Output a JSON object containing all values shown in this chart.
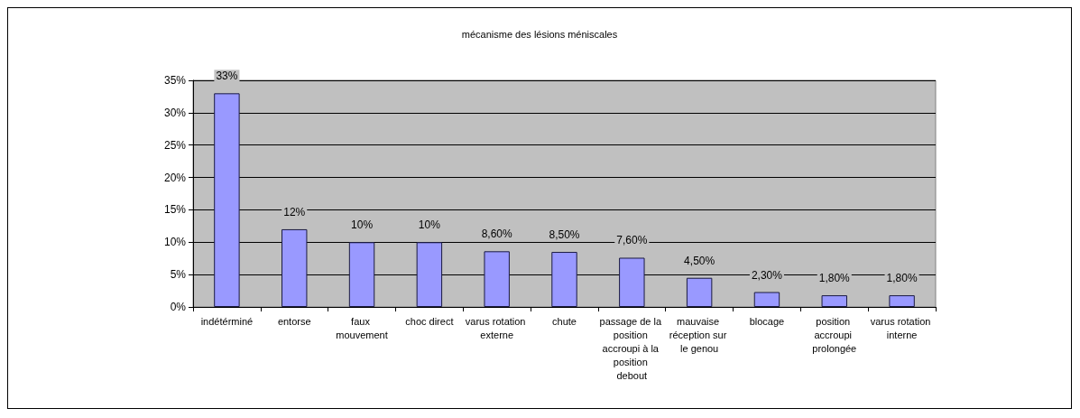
{
  "chart_data": {
    "type": "bar",
    "title": "mécanisme des lésions méniscales",
    "categories": [
      "indétérminé",
      "entorse",
      "faux mouvement",
      "choc direct",
      "varus rotation externe",
      "chute",
      "passage de la position accroupi à la position debout",
      "mauvaise réception sur le genou",
      "blocage",
      "position accroupi prolongée",
      "varus rotation interne"
    ],
    "values": [
      33,
      12,
      10,
      10,
      8.6,
      8.5,
      7.6,
      4.5,
      2.3,
      1.8,
      1.8
    ],
    "value_labels": [
      "33%",
      "12%",
      "10%",
      "10%",
      "8,60%",
      "8,50%",
      "7,60%",
      "4,50%",
      "2,30%",
      "1,80%",
      "1,80%"
    ],
    "color": "#9999ff",
    "ylim": [
      0,
      35
    ],
    "yticks": [
      {
        "value": 0,
        "label": "0%"
      },
      {
        "value": 5,
        "label": "5%"
      },
      {
        "value": 10,
        "label": "10%"
      },
      {
        "value": 15,
        "label": "15%"
      },
      {
        "value": 20,
        "label": "20%"
      },
      {
        "value": 25,
        "label": "25%"
      },
      {
        "value": 30,
        "label": "30%"
      },
      {
        "value": 35,
        "label": "35%"
      }
    ],
    "grid": "y"
  }
}
